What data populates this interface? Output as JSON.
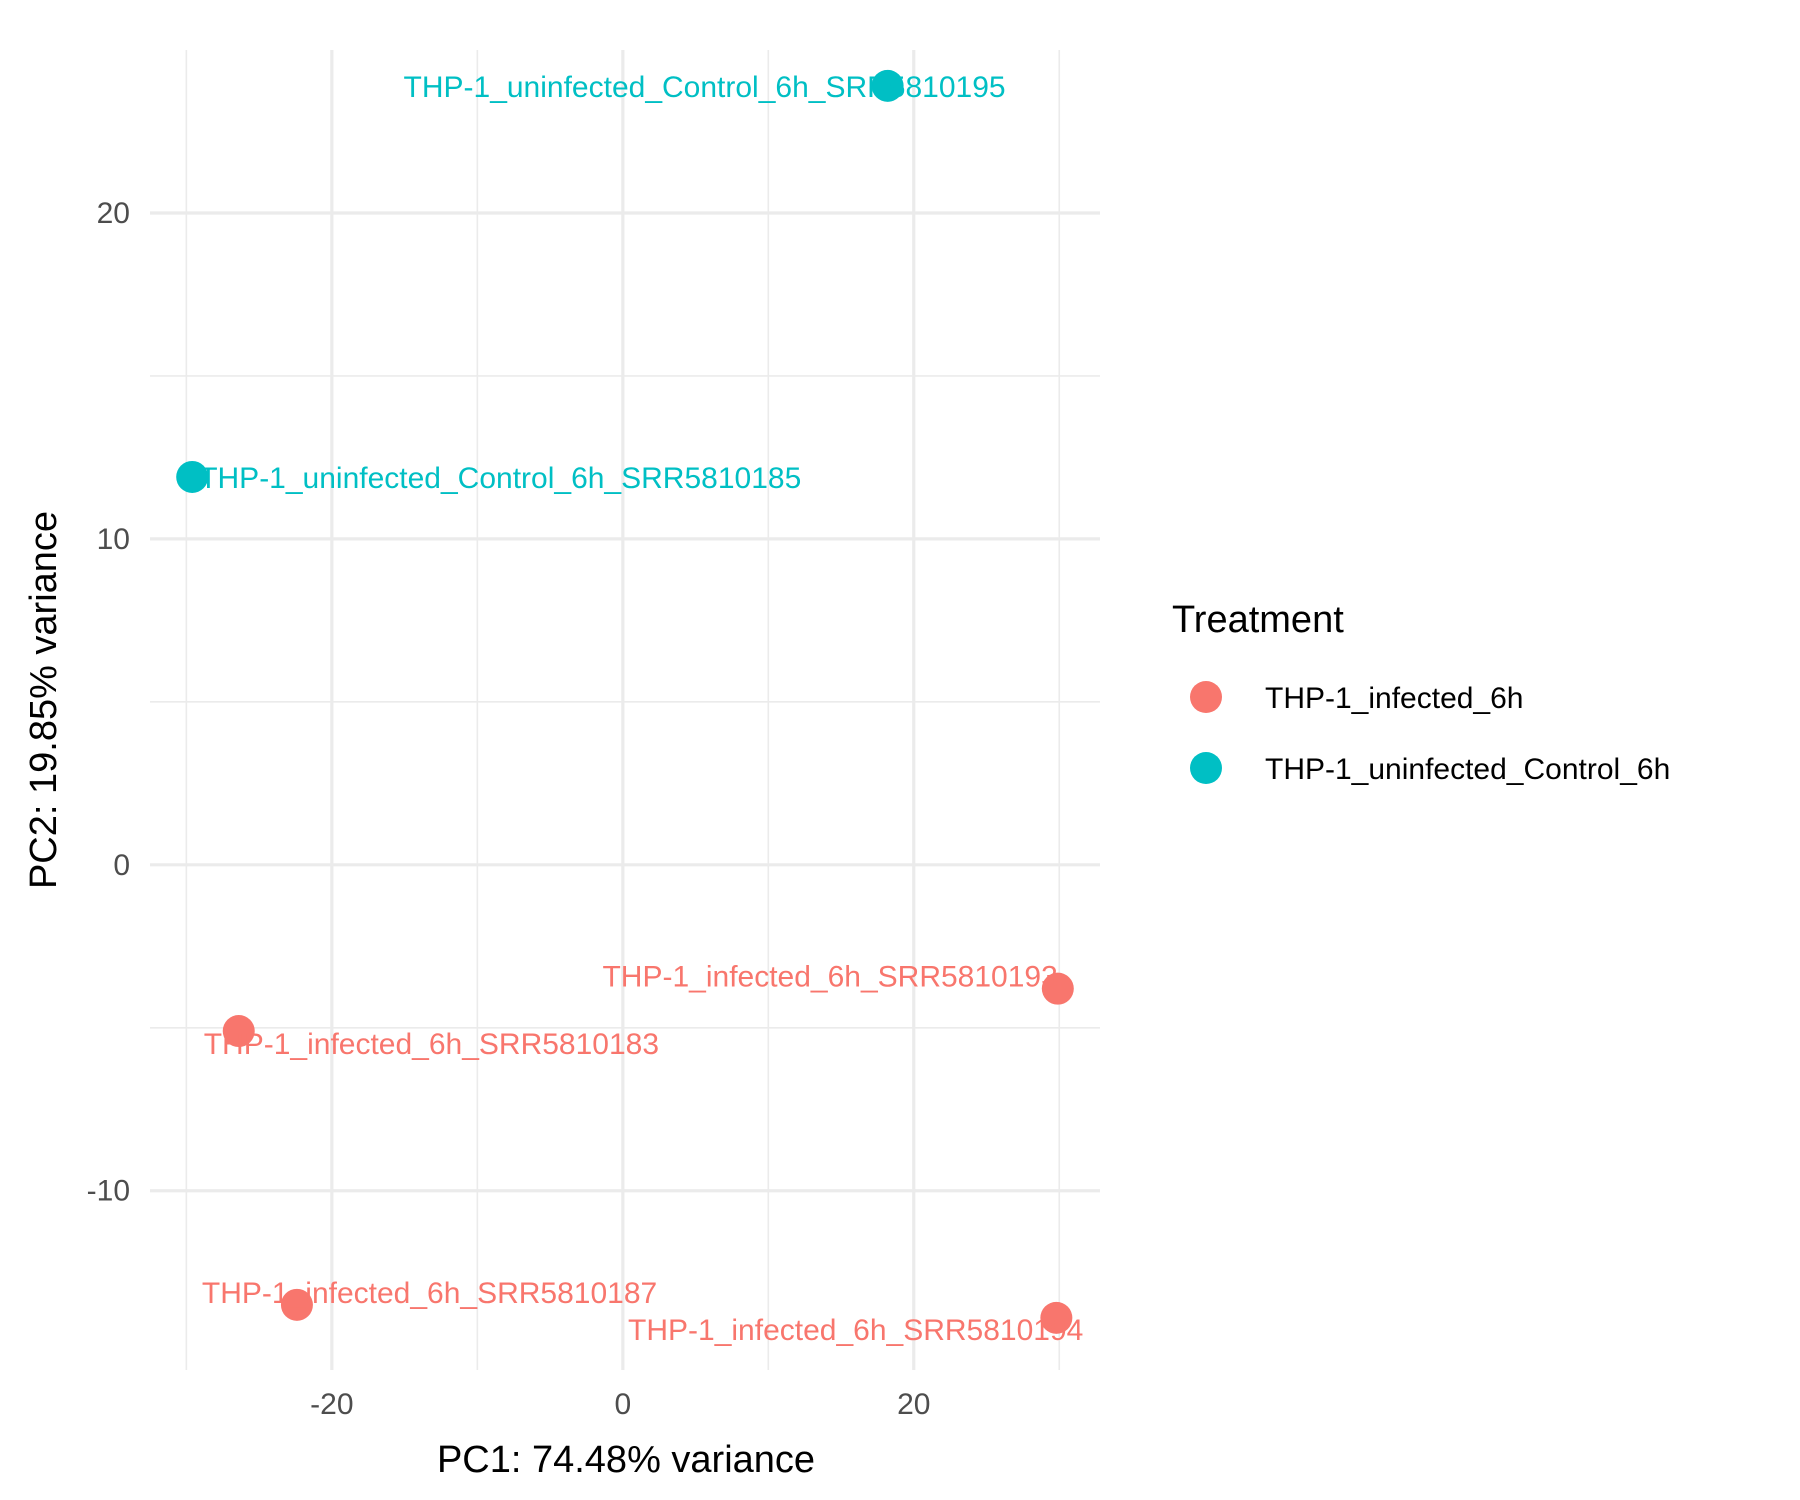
{
  "chart_data": {
    "type": "scatter",
    "xlabel": "PC1: 74.48% variance",
    "ylabel": "PC2: 19.85% variance",
    "xlim": [
      -32.5,
      32.8
    ],
    "ylim": [
      -15.5,
      25.0
    ],
    "x_major_ticks": [
      -20,
      0,
      20
    ],
    "x_tick_labels": [
      "-20",
      "0",
      "20"
    ],
    "y_major_ticks": [
      -10,
      0,
      10,
      20
    ],
    "y_tick_labels": [
      "-10",
      "0",
      "10",
      "20"
    ],
    "x_minor_ticks": [
      -30,
      -10,
      10,
      30
    ],
    "y_minor_ticks": [
      -5,
      5,
      15
    ],
    "grid": true,
    "legend": {
      "title": "Treatment",
      "placement": "right",
      "entries": [
        {
          "name": "THP-1_infected_6h",
          "color": "#F8766D"
        },
        {
          "name": "THP-1_uninfected_Control_6h",
          "color": "#00BFC4"
        }
      ]
    },
    "series": [
      {
        "name": "THP-1_infected_6h",
        "color": "#F8766D",
        "points": [
          {
            "x": -26.4,
            "y": -5.1,
            "label": "THP-1_infected_6h_SRR5810183"
          },
          {
            "x": -22.4,
            "y": -13.5,
            "label": "THP-1_infected_6h_SRR5810187"
          },
          {
            "x": 29.9,
            "y": -3.8,
            "label": "THP-1_infected_6h_SRR5810193"
          },
          {
            "x": 29.8,
            "y": -13.9,
            "label": "THP-1_infected_6h_SRR5810194"
          }
        ]
      },
      {
        "name": "THP-1_uninfected_Control_6h",
        "color": "#00BFC4",
        "points": [
          {
            "x": -29.6,
            "y": 11.9,
            "label": "THP-1_uninfected_Control_6h_SRR5810185"
          },
          {
            "x": 18.2,
            "y": 23.9,
            "label": "THP-1_uninfected_Control_6h_SRR5810195"
          }
        ]
      }
    ]
  }
}
